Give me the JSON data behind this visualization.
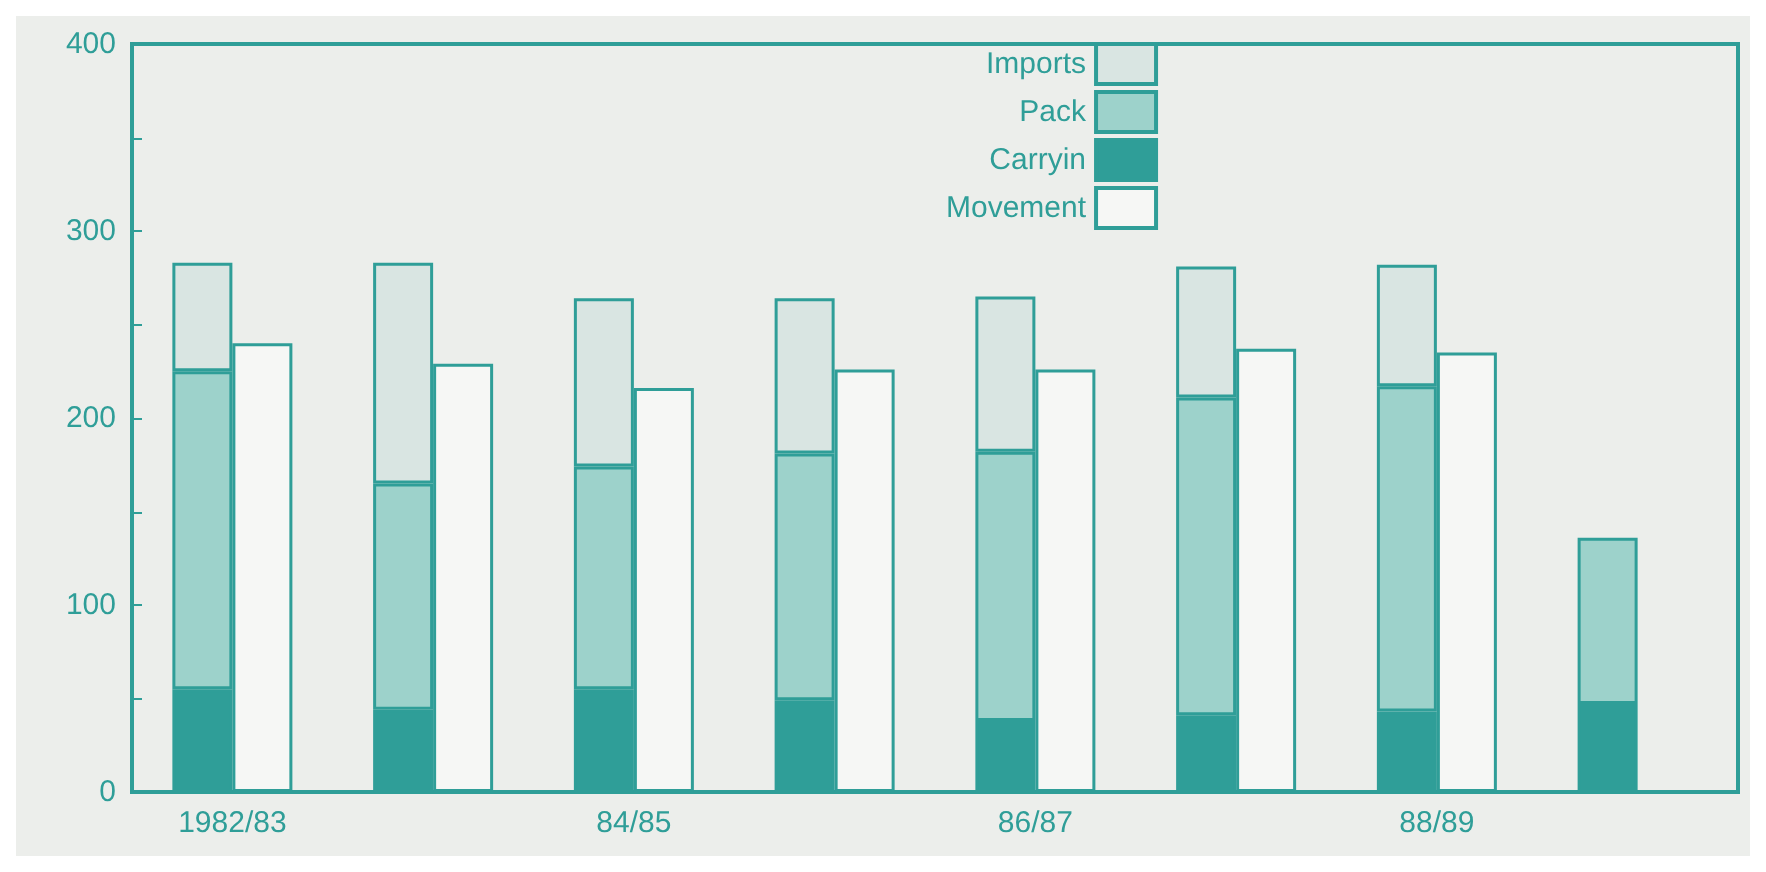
{
  "chart_data": {
    "type": "bar",
    "categories": [
      "1982/83",
      null,
      "84/85",
      null,
      "86/87",
      null,
      "88/89",
      null
    ],
    "series": [
      {
        "name": "Carryin",
        "color": "#2f9e98",
        "base": [
          0,
          0,
          0,
          0,
          0,
          0,
          0,
          0
        ],
        "values": [
          55,
          44,
          55,
          49,
          38,
          41,
          43,
          47
        ]
      },
      {
        "name": "Pack",
        "color": "#9dd2cb",
        "base": [
          55,
          44,
          55,
          49,
          38,
          41,
          43,
          47
        ],
        "values": [
          170,
          121,
          119,
          132,
          144,
          170,
          174,
          89
        ]
      },
      {
        "name": "Imports",
        "color": "#d9e5e2",
        "base": [
          225,
          165,
          174,
          181,
          182,
          211,
          217,
          null
        ],
        "values": [
          58,
          118,
          90,
          83,
          83,
          70,
          65,
          null
        ]
      },
      {
        "name": "Movement",
        "color": "#f6f7f5",
        "values": [
          240,
          229,
          216,
          226,
          226,
          237,
          235,
          null
        ]
      }
    ],
    "ylim": [
      0,
      400
    ],
    "yticks": [
      0,
      {
        "value": 50,
        "label": null
      },
      100,
      {
        "value": 150,
        "label": null
      },
      200,
      {
        "value": 250,
        "label": null
      },
      300,
      {
        "value": 350,
        "label": null
      },
      400
    ],
    "legend": "top",
    "grid": false
  }
}
